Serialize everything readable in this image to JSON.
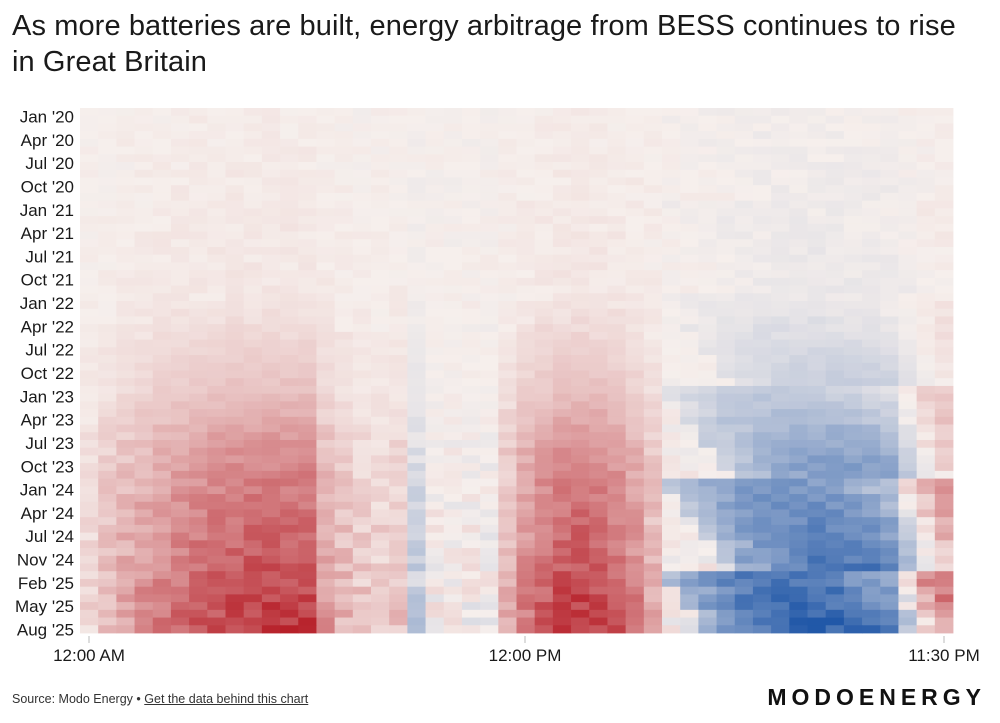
{
  "title": "As more batteries are built, energy arbitrage from BESS continues to rise in Great Britain",
  "footer": {
    "source_label": "Source: Modo Energy",
    "separator": "•",
    "link_label": "Get the data behind this chart"
  },
  "brand": "MODOENERGY",
  "chart_data": {
    "type": "heatmap",
    "title": "As more batteries are built, energy arbitrage from BESS continues to rise in Great Britain",
    "x_ticks": [
      "12:00 AM",
      "12:00 PM",
      "11:30 PM"
    ],
    "y_ticks": [
      "Jan '20",
      "Apr '20",
      "Jul '20",
      "Oct '20",
      "Jan '21",
      "Apr '21",
      "Jul '21",
      "Oct '21",
      "Jan '22",
      "Apr '22",
      "Jul '22",
      "Oct '22",
      "Jan '23",
      "Apr '23",
      "Jul '23",
      "Oct '23",
      "Jan '24",
      "Apr '24",
      "Jul '24",
      "Nov '24",
      "Feb '25",
      "May '25",
      "Aug '25"
    ],
    "x_range": [
      "12:00 AM",
      "11:30 PM"
    ],
    "y_range": [
      "Jan '20",
      "Aug '25"
    ],
    "periods_per_day": 48,
    "months": 68,
    "color_scale": {
      "negative": "#2158a8",
      "neutral": "#f6efec",
      "positive": "#b3141e",
      "domain": [
        -1,
        1
      ]
    },
    "grid": false,
    "legend": "none",
    "pattern": {
      "positive_bands": [
        {
          "from_period": 0,
          "to_period": 17,
          "peak_period": 11,
          "peak_value": 0.85
        },
        {
          "from_period": 23,
          "to_period": 31,
          "peak_period": 27,
          "peak_value": 0.85
        },
        {
          "from_period": 45,
          "to_period": 47,
          "peak_period": 47,
          "peak_value": 0.6
        }
      ],
      "negative_bands": [
        {
          "from_period": 13,
          "to_period": 18,
          "peak_period": 15,
          "peak_value": -0.55
        },
        {
          "from_period": 32,
          "to_period": 45,
          "peak_period": 38,
          "peak_value": -0.95
        }
      ],
      "growth": [
        {
          "month_index": 0,
          "strength": 0.02
        },
        {
          "month_index": 24,
          "strength": 0.05
        },
        {
          "month_index": 36,
          "strength": 0.25
        },
        {
          "month_index": 45,
          "strength": 0.55
        },
        {
          "month_index": 55,
          "strength": 0.75
        },
        {
          "month_index": 67,
          "strength": 1.0
        }
      ]
    }
  }
}
